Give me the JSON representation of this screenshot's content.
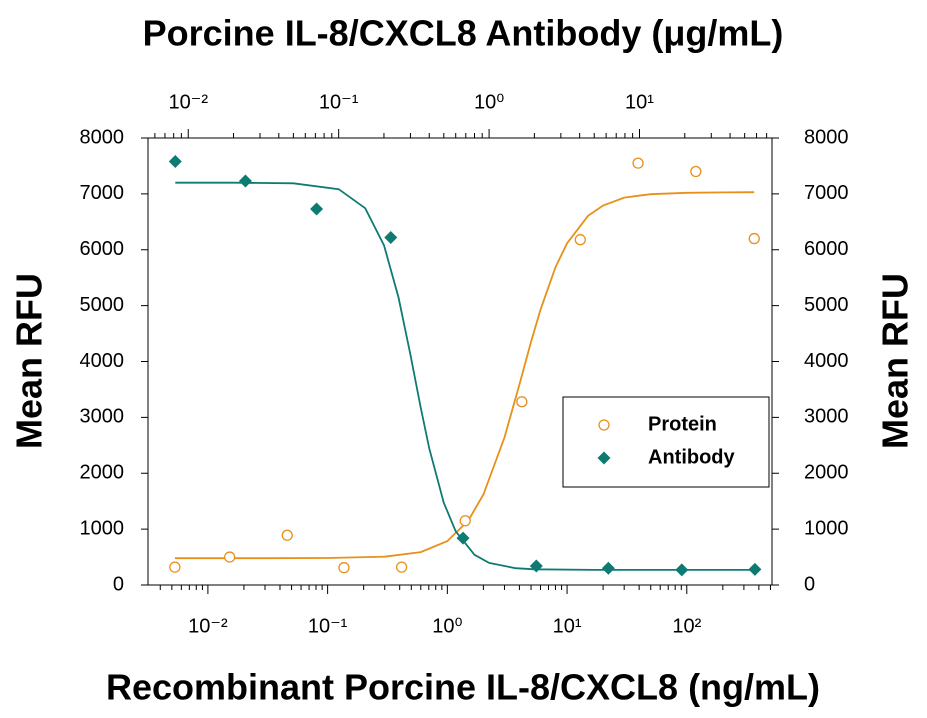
{
  "chart_data": {
    "type": "scatter",
    "title": "Porcine IL-8/CXCL8 Antibody (μg/mL)",
    "x_label": "Recombinant Porcine IL-8/CXCL8 (ng/mL)",
    "y_label": "Mean RFU",
    "y2_label": "Mean RFU",
    "xscale": "log",
    "x2scale": "log",
    "minor_ticks": true,
    "xlim": [
      0.00316,
      515
    ],
    "xticks": [
      {
        "value": 0.01,
        "label": "10⁻²"
      },
      {
        "value": 0.1,
        "label": "10⁻¹"
      },
      {
        "value": 1,
        "label": "10⁰"
      },
      {
        "value": 10,
        "label": "10¹"
      },
      {
        "value": 100,
        "label": "10²"
      }
    ],
    "x2lim": [
      0.0054,
      76
    ],
    "x2ticks": [
      {
        "value": 0.01,
        "label": "10⁻²"
      },
      {
        "value": 0.1,
        "label": "10⁻¹"
      },
      {
        "value": 1,
        "label": "10⁰"
      },
      {
        "value": 10,
        "label": "10¹"
      }
    ],
    "ylim": [
      0,
      8000
    ],
    "yticks": [
      0,
      1000,
      2000,
      3000,
      4000,
      5000,
      6000,
      7000,
      8000
    ],
    "y2lim": [
      0,
      8000
    ],
    "y2ticks": [
      0,
      1000,
      2000,
      3000,
      4000,
      5000,
      6000,
      7000,
      8000
    ],
    "legend": "right",
    "series": [
      {
        "name": "Protein",
        "color": "#e8901a",
        "marker": "open-circle",
        "x": [
          0.0053,
          0.0152,
          0.046,
          0.137,
          0.415,
          1.41,
          4.19,
          12.9,
          39.2,
          119,
          366
        ],
        "values": [
          320,
          500,
          890,
          310,
          320,
          1150,
          3280,
          6180,
          7550,
          7400,
          6200
        ],
        "fit": {
          "x": [
            0.0053,
            0.03,
            0.1,
            0.3,
            0.6,
            1,
            1.5,
            2,
            3,
            4,
            5,
            6,
            8,
            10,
            15,
            20,
            30,
            50,
            100,
            200,
            366
          ],
          "values": [
            480,
            480,
            483,
            506,
            588,
            786,
            1156,
            1619,
            2642,
            3587,
            4349,
            4927,
            5687,
            6117,
            6607,
            6792,
            6934,
            6994,
            7020,
            7027,
            7030
          ]
        }
      },
      {
        "name": "Antibody",
        "color": "#0e7b73",
        "marker": "diamond",
        "axis": "x2",
        "x": [
          0.0082,
          0.024,
          0.0713,
          0.222,
          0.671,
          2.06,
          6.21,
          19.1,
          58.5
        ],
        "values": [
          7580,
          7230,
          6730,
          6220,
          840,
          340,
          300,
          270,
          280
        ],
        "fit": {
          "x": [
            0.0082,
            0.02,
            0.05,
            0.1,
            0.15,
            0.2,
            0.25,
            0.3,
            0.35,
            0.4,
            0.5,
            0.6,
            0.8,
            1,
            1.5,
            2,
            5,
            10,
            20,
            58.5
          ],
          "values": [
            7200,
            7200,
            7190,
            7083,
            6744,
            6079,
            5147,
            4124,
            3195,
            2449,
            1471,
            961,
            540,
            396,
            301,
            281,
            270,
            270,
            270,
            270
          ]
        }
      }
    ]
  }
}
